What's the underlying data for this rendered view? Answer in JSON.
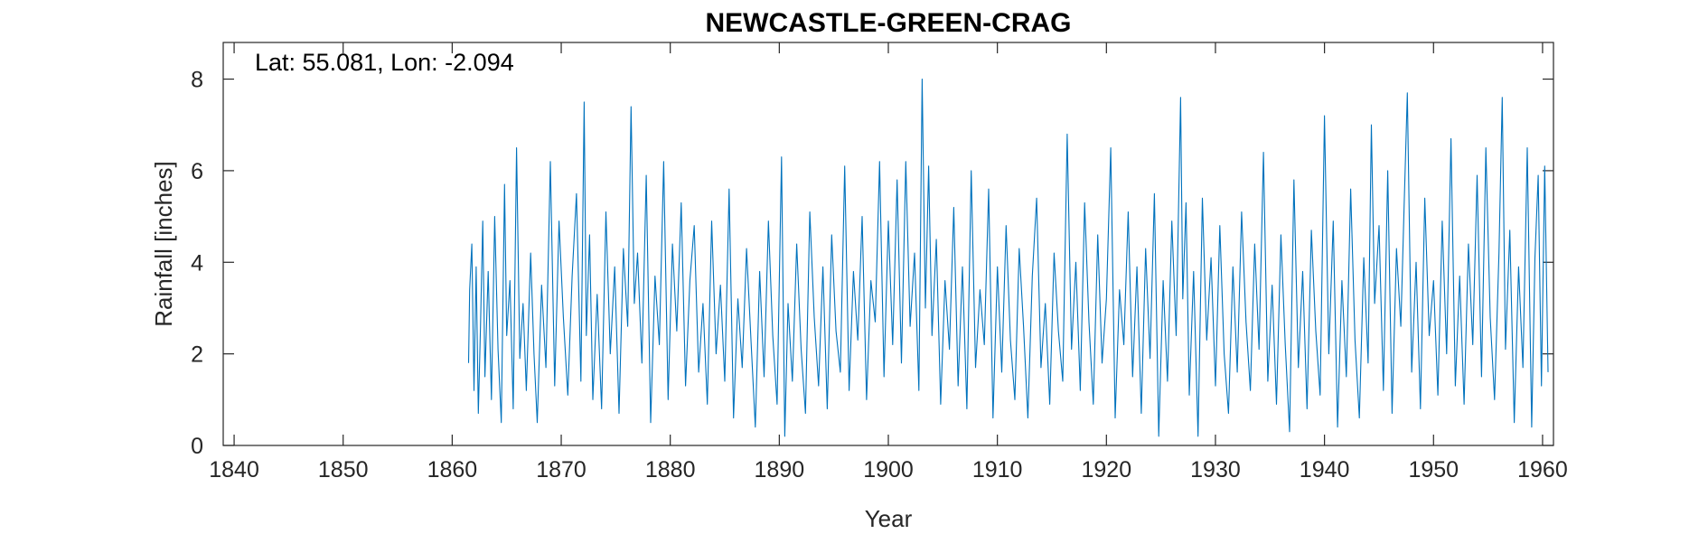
{
  "colors": {
    "series": "#0072BD",
    "axis": "#262626",
    "background": "#ffffff"
  },
  "chart_data": {
    "type": "line",
    "title": "NEWCASTLE-GREEN-CRAG",
    "xlabel": "Year",
    "ylabel": "Rainfall [inches]",
    "annotation": "Lat: 55.081, Lon: -2.094",
    "xlim": [
      1839,
      1961
    ],
    "ylim": [
      0,
      8.8
    ],
    "xticks": [
      1840,
      1850,
      1860,
      1870,
      1880,
      1890,
      1900,
      1910,
      1920,
      1930,
      1940,
      1950,
      1960
    ],
    "yticks": [
      0,
      2,
      4,
      6,
      8
    ],
    "grid": false,
    "series": [
      {
        "resolution": "monthly",
        "x": [
          1861.5,
          1861.6,
          1861.8,
          1862.0,
          1862.2,
          1862.4,
          1862.6,
          1862.8,
          1863.0,
          1863.3,
          1863.6,
          1863.9,
          1864.2,
          1864.5,
          1864.8,
          1865.0,
          1865.3,
          1865.6,
          1865.9,
          1866.2,
          1866.5,
          1866.8,
          1867.2,
          1867.5,
          1867.8,
          1868.2,
          1868.6,
          1869.0,
          1869.4,
          1869.8,
          1870.2,
          1870.6,
          1871.0,
          1871.4,
          1871.8,
          1872.1,
          1872.3,
          1872.6,
          1872.9,
          1873.3,
          1873.7,
          1874.1,
          1874.5,
          1874.9,
          1875.3,
          1875.7,
          1876.1,
          1876.4,
          1876.7,
          1877.0,
          1877.4,
          1877.8,
          1878.2,
          1878.6,
          1879.0,
          1879.4,
          1879.8,
          1880.2,
          1880.6,
          1881.0,
          1881.4,
          1881.8,
          1882.2,
          1882.6,
          1883.0,
          1883.4,
          1883.8,
          1884.2,
          1884.6,
          1885.0,
          1885.4,
          1885.8,
          1886.2,
          1886.6,
          1887.0,
          1887.4,
          1887.8,
          1888.2,
          1888.6,
          1889.0,
          1889.4,
          1889.8,
          1890.2,
          1890.5,
          1890.8,
          1891.2,
          1891.6,
          1892.0,
          1892.4,
          1892.8,
          1893.2,
          1893.6,
          1894.0,
          1894.4,
          1894.8,
          1895.2,
          1895.6,
          1896.0,
          1896.4,
          1896.8,
          1897.2,
          1897.6,
          1898.0,
          1898.4,
          1898.8,
          1899.2,
          1899.6,
          1900.0,
          1900.4,
          1900.8,
          1901.2,
          1901.6,
          1902.0,
          1902.4,
          1902.8,
          1903.1,
          1903.4,
          1903.7,
          1904.0,
          1904.4,
          1904.8,
          1905.2,
          1905.6,
          1906.0,
          1906.4,
          1906.8,
          1907.2,
          1907.6,
          1908.0,
          1908.4,
          1908.8,
          1909.2,
          1909.6,
          1910.0,
          1910.4,
          1910.8,
          1911.2,
          1911.6,
          1912.0,
          1912.4,
          1912.8,
          1913.2,
          1913.6,
          1914.0,
          1914.4,
          1914.8,
          1915.2,
          1915.6,
          1916.0,
          1916.4,
          1916.8,
          1917.2,
          1917.6,
          1918.0,
          1918.4,
          1918.8,
          1919.2,
          1919.6,
          1920.0,
          1920.4,
          1920.8,
          1921.2,
          1921.6,
          1922.0,
          1922.4,
          1922.8,
          1923.2,
          1923.6,
          1924.0,
          1924.4,
          1924.8,
          1925.2,
          1925.6,
          1926.0,
          1926.4,
          1926.8,
          1927.0,
          1927.3,
          1927.6,
          1928.0,
          1928.4,
          1928.8,
          1929.2,
          1929.6,
          1930.0,
          1930.4,
          1930.8,
          1931.2,
          1931.6,
          1932.0,
          1932.4,
          1932.8,
          1933.2,
          1933.6,
          1934.0,
          1934.4,
          1934.8,
          1935.2,
          1935.6,
          1936.0,
          1936.4,
          1936.8,
          1937.2,
          1937.6,
          1938.0,
          1938.4,
          1938.8,
          1939.2,
          1939.6,
          1940.0,
          1940.4,
          1940.8,
          1941.2,
          1941.6,
          1942.0,
          1942.4,
          1942.8,
          1943.2,
          1943.6,
          1944.0,
          1944.3,
          1944.6,
          1945.0,
          1945.4,
          1945.8,
          1946.2,
          1946.6,
          1947.0,
          1947.3,
          1947.6,
          1948.0,
          1948.4,
          1948.8,
          1949.2,
          1949.6,
          1950.0,
          1950.4,
          1950.8,
          1951.2,
          1951.6,
          1952.0,
          1952.4,
          1952.8,
          1953.2,
          1953.6,
          1954.0,
          1954.4,
          1954.8,
          1955.2,
          1955.6,
          1956.0,
          1956.3,
          1956.6,
          1957.0,
          1957.4,
          1957.8,
          1958.2,
          1958.6,
          1959.0,
          1959.3,
          1959.6,
          1959.9,
          1960.2,
          1960.5
        ],
        "y": [
          1.8,
          3.4,
          4.4,
          1.2,
          3.9,
          0.7,
          2.6,
          4.9,
          1.5,
          3.8,
          1.0,
          5.0,
          2.1,
          0.5,
          5.7,
          2.4,
          3.6,
          0.8,
          6.5,
          1.9,
          3.1,
          1.2,
          4.2,
          2.0,
          0.5,
          3.5,
          1.7,
          6.2,
          1.3,
          4.9,
          2.8,
          1.1,
          3.7,
          5.5,
          1.4,
          7.5,
          2.4,
          4.6,
          1.0,
          3.3,
          0.8,
          5.1,
          2.0,
          3.9,
          0.7,
          4.3,
          2.6,
          7.4,
          3.1,
          4.2,
          1.8,
          5.9,
          0.5,
          3.7,
          2.2,
          6.2,
          1.0,
          4.4,
          2.5,
          5.3,
          1.3,
          3.6,
          4.8,
          1.6,
          3.1,
          0.9,
          4.9,
          2.0,
          3.5,
          1.4,
          5.6,
          0.6,
          3.2,
          1.7,
          4.3,
          2.3,
          0.4,
          3.8,
          1.5,
          4.9,
          2.4,
          0.9,
          6.3,
          0.2,
          3.1,
          1.4,
          4.4,
          2.1,
          0.7,
          5.1,
          2.8,
          1.3,
          3.9,
          0.8,
          4.6,
          2.5,
          1.6,
          6.1,
          1.2,
          3.8,
          2.3,
          5.0,
          1.0,
          3.6,
          2.7,
          6.2,
          1.5,
          4.9,
          2.2,
          5.8,
          1.8,
          6.2,
          2.6,
          4.2,
          1.2,
          8.0,
          3.0,
          6.1,
          2.4,
          4.5,
          0.9,
          3.6,
          2.1,
          5.2,
          1.3,
          3.9,
          0.8,
          6.0,
          1.7,
          3.4,
          2.2,
          5.6,
          0.6,
          3.9,
          1.6,
          4.8,
          2.3,
          1.0,
          4.3,
          2.6,
          0.6,
          3.7,
          5.4,
          1.7,
          3.1,
          0.9,
          4.2,
          2.5,
          1.4,
          6.8,
          2.1,
          4.0,
          1.2,
          5.3,
          2.7,
          0.9,
          4.6,
          1.8,
          3.2,
          6.5,
          0.6,
          3.4,
          2.2,
          5.1,
          1.5,
          3.9,
          0.7,
          4.3,
          1.9,
          5.5,
          0.2,
          3.6,
          1.4,
          4.9,
          2.4,
          7.6,
          3.2,
          5.3,
          1.1,
          3.8,
          0.2,
          5.4,
          2.3,
          4.1,
          1.3,
          4.8,
          2.0,
          0.7,
          3.9,
          1.6,
          5.1,
          2.7,
          1.2,
          4.4,
          2.1,
          6.4,
          1.4,
          3.5,
          0.9,
          4.6,
          2.2,
          0.3,
          5.8,
          1.7,
          3.8,
          0.8,
          4.7,
          2.5,
          1.1,
          7.2,
          2.0,
          4.9,
          0.4,
          3.6,
          1.5,
          5.6,
          2.3,
          0.6,
          4.1,
          1.8,
          7.0,
          3.1,
          4.8,
          1.2,
          6.0,
          0.7,
          4.3,
          2.6,
          5.2,
          7.7,
          1.6,
          4.0,
          0.8,
          5.4,
          2.4,
          3.6,
          1.1,
          4.9,
          2.0,
          6.7,
          1.3,
          3.7,
          0.9,
          4.4,
          2.2,
          5.9,
          1.5,
          6.5,
          2.8,
          1.0,
          4.2,
          7.6,
          2.1,
          4.7,
          0.5,
          3.9,
          1.7,
          6.5,
          0.4,
          4.1,
          5.9,
          1.3,
          6.1,
          1.6
        ]
      }
    ]
  }
}
